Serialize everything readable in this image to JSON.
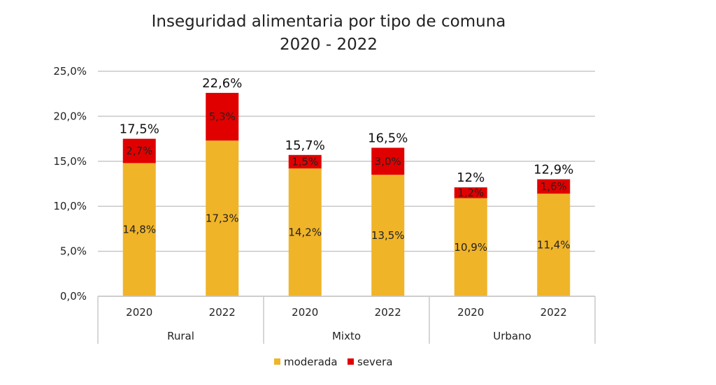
{
  "chart_data": {
    "type": "bar",
    "stacked": true,
    "title_line1": "Inseguridad alimentaria por tipo de comuna",
    "title_line2": "2020 - 2022",
    "ylim": [
      0,
      25
    ],
    "y_ticks": [
      "0,0%",
      "5,0%",
      "10,0%",
      "15,0%",
      "20,0%",
      "25,0%"
    ],
    "y_tick_values": [
      0,
      5,
      10,
      15,
      20,
      25
    ],
    "grid": true,
    "groups": [
      "Rural",
      "Mixto",
      "Urbano"
    ],
    "categories": [
      "2020",
      "2022",
      "2020",
      "2022",
      "2020",
      "2022"
    ],
    "series": [
      {
        "name": "moderada",
        "color": "#F0B429",
        "values": [
          14.8,
          17.3,
          14.2,
          13.5,
          10.9,
          11.4
        ],
        "labels": [
          "14,8%",
          "17,3%",
          "14,2%",
          "13,5%",
          "10,9%",
          "11,4%"
        ]
      },
      {
        "name": "severa",
        "color": "#E00000",
        "values": [
          2.7,
          5.3,
          1.5,
          3.0,
          1.2,
          1.6
        ],
        "labels": [
          "2,7%",
          "5,3%",
          "1,5%",
          "3,0%",
          "1,2%",
          "1,6%"
        ]
      }
    ],
    "totals": [
      "17,5%",
      "22,6%",
      "15,7%",
      "16,5%",
      "12%",
      "12,9%"
    ],
    "legend_position": "bottom"
  }
}
